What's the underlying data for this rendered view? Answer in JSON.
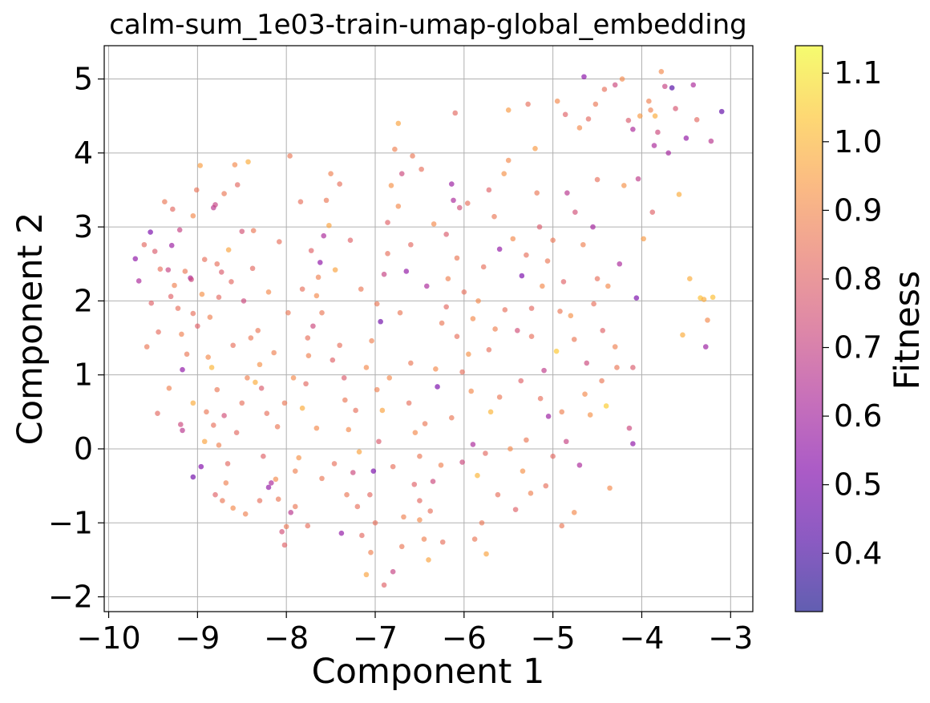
{
  "chart_data": {
    "type": "scatter",
    "title": "calm-sum_1e03-train-umap-global_embedding",
    "xlabel": "Component 1",
    "ylabel": "Component 2",
    "xlim": [
      -10.05,
      -2.75
    ],
    "ylim": [
      -2.2,
      5.45
    ],
    "grid": true,
    "x_ticks": [
      -10,
      -9,
      -8,
      -7,
      -6,
      -5,
      -4,
      -3
    ],
    "x_tick_labels": [
      "−10",
      "−9",
      "−8",
      "−7",
      "−6",
      "−5",
      "−4",
      "−3"
    ],
    "y_ticks": [
      -2,
      -1,
      0,
      1,
      2,
      3,
      4,
      5
    ],
    "y_tick_labels": [
      "−2",
      "−1",
      "0",
      "1",
      "2",
      "3",
      "4",
      "5"
    ],
    "colorbar": {
      "label": "Fitness",
      "colormap": "plasma",
      "alpha": 0.65,
      "vmin": 0.315,
      "vmax": 1.14,
      "ticks": [
        0.4,
        0.5,
        0.6,
        0.7,
        0.8,
        0.9,
        1.0,
        1.1
      ],
      "tick_labels": [
        "0.4",
        "0.5",
        "0.6",
        "0.7",
        "0.8",
        "0.9",
        "1.0",
        "1.1"
      ]
    },
    "points": [
      [
        -9.7,
        2.57,
        0.55
      ],
      [
        -9.66,
        2.27,
        0.62
      ],
      [
        -9.6,
        2.76,
        0.82
      ],
      [
        -9.53,
        2.93,
        0.5
      ],
      [
        -9.48,
        2.67,
        0.78
      ],
      [
        -9.57,
        1.38,
        0.86
      ],
      [
        -9.52,
        1.97,
        0.8
      ],
      [
        -9.44,
        1.58,
        0.83
      ],
      [
        -9.42,
        2.43,
        0.84
      ],
      [
        -9.37,
        3.34,
        0.86
      ],
      [
        -9.33,
        2.42,
        0.7
      ],
      [
        -9.29,
        2.75,
        0.58
      ],
      [
        -9.28,
        3.24,
        0.82
      ],
      [
        -9.26,
        2.21,
        0.88
      ],
      [
        -9.2,
        2.96,
        0.7
      ],
      [
        -9.18,
        1.55,
        0.88
      ],
      [
        -9.17,
        1.07,
        0.55
      ],
      [
        -9.14,
        2.4,
        0.86
      ],
      [
        -9.08,
        2.31,
        0.62
      ],
      [
        -9.07,
        2.29,
        0.72
      ],
      [
        -9.05,
        3.15,
        0.9
      ],
      [
        -9.01,
        3.5,
        0.85
      ],
      [
        -9.05,
        1.83,
        0.84
      ],
      [
        -9.0,
        1.66,
        0.8
      ],
      [
        -8.95,
        2.09,
        0.92
      ],
      [
        -8.97,
        3.83,
        0.95
      ],
      [
        -9.32,
        0.82,
        0.88
      ],
      [
        -9.45,
        0.48,
        0.82
      ],
      [
        -9.19,
        0.33,
        0.72
      ],
      [
        -9.17,
        0.25,
        0.66
      ],
      [
        -9.05,
        0.62,
        0.98
      ],
      [
        -9.05,
        -0.38,
        0.48
      ],
      [
        -8.96,
        -0.24,
        0.52
      ],
      [
        -8.92,
        0.1,
        0.96
      ],
      [
        -8.9,
        0.5,
        0.86
      ],
      [
        -8.88,
        1.24,
        0.9
      ],
      [
        -8.84,
        1.1,
        1.0
      ],
      [
        -8.82,
        0.32,
        0.84
      ],
      [
        -8.8,
        -0.62,
        0.8
      ],
      [
        -8.76,
        0.05,
        0.88
      ],
      [
        -8.72,
        -0.7,
        0.86
      ],
      [
        -8.7,
        0.45,
        0.74
      ],
      [
        -8.66,
        -0.2,
        0.82
      ],
      [
        -8.6,
        -0.8,
        0.9
      ],
      [
        -8.82,
        3.26,
        0.66
      ],
      [
        -8.8,
        3.3,
        0.7
      ],
      [
        -8.78,
        2.5,
        0.84
      ],
      [
        -8.76,
        2.05,
        0.82
      ],
      [
        -8.73,
        2.39,
        0.78
      ],
      [
        -8.7,
        3.45,
        0.86
      ],
      [
        -8.65,
        2.69,
        0.96
      ],
      [
        -8.62,
        2.26,
        0.82
      ],
      [
        -8.58,
        3.84,
        0.9
      ],
      [
        -8.55,
        3.57,
        0.82
      ],
      [
        -8.5,
        2.94,
        0.75
      ],
      [
        -8.48,
        2.0,
        0.72
      ],
      [
        -8.43,
        3.88,
        0.98
      ],
      [
        -8.4,
        1.5,
        0.86
      ],
      [
        -8.37,
        2.95,
        0.86
      ],
      [
        -8.35,
        0.9,
        0.98
      ],
      [
        -8.3,
        1.14,
        0.92
      ],
      [
        -8.28,
        0.82,
        0.78
      ],
      [
        -8.22,
        0.48,
        0.84
      ],
      [
        -8.2,
        -0.52,
        0.56
      ],
      [
        -8.17,
        -0.46,
        0.62
      ],
      [
        -8.12,
        -0.41,
        0.9
      ],
      [
        -8.09,
        -0.68,
        0.86
      ],
      [
        -8.05,
        -1.12,
        0.74
      ],
      [
        -8.02,
        -1.3,
        0.8
      ],
      [
        -8.0,
        -1.05,
        0.86
      ],
      [
        -7.95,
        -0.86,
        0.66
      ],
      [
        -7.9,
        -0.3,
        0.88
      ],
      [
        -7.86,
        -0.12,
        0.92
      ],
      [
        -7.82,
        0.55,
        0.98
      ],
      [
        -7.78,
        0.88,
        0.82
      ],
      [
        -7.75,
        1.26,
        0.88
      ],
      [
        -7.7,
        1.66,
        0.72
      ],
      [
        -7.66,
        2.07,
        0.9
      ],
      [
        -7.62,
        2.52,
        0.55
      ],
      [
        -7.58,
        2.88,
        0.62
      ],
      [
        -7.55,
        3.36,
        0.86
      ],
      [
        -7.5,
        3.72,
        0.88
      ],
      [
        -7.45,
        2.42,
        0.96
      ],
      [
        -7.4,
        1.4,
        0.84
      ],
      [
        -7.35,
        0.96,
        0.78
      ],
      [
        -7.3,
        0.26,
        0.9
      ],
      [
        -7.25,
        -0.32,
        0.72
      ],
      [
        -7.2,
        -0.78,
        0.84
      ],
      [
        -7.15,
        -1.17,
        0.82
      ],
      [
        -7.1,
        -1.7,
        0.96
      ],
      [
        -7.05,
        -1.4,
        0.88
      ],
      [
        -7.02,
        -0.3,
        0.5
      ],
      [
        -6.98,
        0.8,
        0.88
      ],
      [
        -6.94,
        1.72,
        0.48
      ],
      [
        -6.9,
        2.36,
        0.7
      ],
      [
        -6.86,
        3.06,
        0.8
      ],
      [
        -6.82,
        3.56,
        0.92
      ],
      [
        -6.78,
        4.05,
        0.88
      ],
      [
        -6.74,
        4.4,
        0.96
      ],
      [
        -6.7,
        3.72,
        0.72
      ],
      [
        -6.65,
        2.4,
        0.56
      ],
      [
        -6.6,
        1.16,
        0.86
      ],
      [
        -6.55,
        0.22,
        0.9
      ],
      [
        -6.5,
        -0.7,
        0.82
      ],
      [
        -6.45,
        -1.22,
        0.88
      ],
      [
        -6.4,
        -1.5,
        0.96
      ],
      [
        -6.35,
        -0.44,
        0.72
      ],
      [
        -6.3,
        0.84,
        0.5
      ],
      [
        -6.25,
        1.7,
        0.86
      ],
      [
        -6.2,
        2.9,
        0.78
      ],
      [
        -6.14,
        3.58,
        0.58
      ],
      [
        -6.1,
        4.54,
        0.82
      ],
      [
        -6.05,
        3.26,
        0.74
      ],
      [
        -6.0,
        2.12,
        0.84
      ],
      [
        -5.95,
        1.28,
        0.92
      ],
      [
        -5.9,
        0.06,
        0.62
      ],
      [
        -5.85,
        -0.36,
        1.0
      ],
      [
        -5.8,
        -1.0,
        0.86
      ],
      [
        -5.75,
        -1.42,
        0.96
      ],
      [
        -5.7,
        0.5,
        1.0
      ],
      [
        -5.65,
        1.62,
        0.88
      ],
      [
        -5.6,
        2.7,
        0.56
      ],
      [
        -5.55,
        3.72,
        0.92
      ],
      [
        -5.5,
        4.58,
        0.94
      ],
      [
        -5.45,
        2.84,
        0.9
      ],
      [
        -5.4,
        1.6,
        0.74
      ],
      [
        -5.35,
        2.34,
        0.5
      ],
      [
        -5.3,
        0.12,
        0.86
      ],
      [
        -5.25,
        -0.6,
        0.88
      ],
      [
        -5.2,
        4.06,
        0.94
      ],
      [
        -5.15,
        3.0,
        0.78
      ],
      [
        -5.1,
        1.06,
        0.68
      ],
      [
        -5.05,
        0.44,
        0.58
      ],
      [
        -5.0,
        -0.1,
        0.82
      ],
      [
        -4.96,
        1.32,
        1.04
      ],
      [
        -4.9,
        -1.04,
        0.86
      ],
      [
        -4.85,
        0.1,
        0.7
      ],
      [
        -4.8,
        1.8,
        0.92
      ],
      [
        -4.75,
        3.2,
        0.74
      ],
      [
        -4.7,
        4.34,
        0.9
      ],
      [
        -4.65,
        5.03,
        0.54
      ],
      [
        -4.6,
        4.46,
        0.82
      ],
      [
        -4.55,
        3.0,
        0.6
      ],
      [
        -4.5,
        2.3,
        0.84
      ],
      [
        -4.45,
        0.92,
        0.86
      ],
      [
        -4.4,
        0.58,
        1.05
      ],
      [
        -4.36,
        -0.53,
        0.9
      ],
      [
        -4.3,
        1.38,
        0.88
      ],
      [
        -4.25,
        2.5,
        0.62
      ],
      [
        -4.2,
        3.56,
        0.92
      ],
      [
        -4.15,
        4.44,
        0.78
      ],
      [
        -4.1,
        0.07,
        0.55
      ],
      [
        -4.06,
        2.04,
        0.5
      ],
      [
        -4.02,
        4.5,
        0.94
      ],
      [
        -3.98,
        2.84,
        0.94
      ],
      [
        -3.92,
        4.7,
        0.88
      ],
      [
        -3.88,
        3.2,
        0.8
      ],
      [
        -3.85,
        4.5,
        0.98
      ],
      [
        -3.82,
        4.28,
        0.72
      ],
      [
        -3.78,
        5.1,
        0.9
      ],
      [
        -3.74,
        4.9,
        0.7
      ],
      [
        -3.7,
        4.0,
        0.6
      ],
      [
        -3.66,
        4.88,
        0.42
      ],
      [
        -3.62,
        4.6,
        0.76
      ],
      [
        -3.58,
        3.44,
        0.98
      ],
      [
        -3.54,
        1.54,
        0.98
      ],
      [
        -3.5,
        4.2,
        0.56
      ],
      [
        -3.46,
        2.3,
        0.98
      ],
      [
        -3.42,
        4.92,
        0.62
      ],
      [
        -3.38,
        4.45,
        0.82
      ],
      [
        -3.34,
        2.04,
        1.02
      ],
      [
        -3.3,
        2.02,
        0.98
      ],
      [
        -3.28,
        1.38,
        0.58
      ],
      [
        -3.26,
        1.74,
        0.9
      ],
      [
        -3.22,
        4.16,
        0.66
      ],
      [
        -3.1,
        4.56,
        0.45
      ],
      [
        -3.2,
        2.05,
        1.02
      ],
      [
        -4.22,
        5.0,
        0.9
      ],
      [
        -4.3,
        4.92,
        0.72
      ],
      [
        -4.52,
        4.66,
        0.86
      ],
      [
        -4.95,
        4.7,
        0.9
      ],
      [
        -4.5,
        3.64,
        0.84
      ],
      [
        -3.9,
        4.58,
        0.88
      ],
      [
        -3.86,
        4.1,
        0.62
      ],
      [
        -4.04,
        3.65,
        0.68
      ],
      [
        -4.1,
        1.1,
        0.78
      ],
      [
        -4.14,
        0.28,
        0.72
      ],
      [
        -4.58,
        0.46,
        0.92
      ],
      [
        -4.7,
        -0.22,
        0.62
      ],
      [
        -4.76,
        -0.86,
        0.9
      ],
      [
        -4.62,
        1.16,
        0.72
      ],
      [
        -4.44,
        1.6,
        0.8
      ],
      [
        -4.38,
        2.2,
        0.9
      ],
      [
        -4.66,
        2.76,
        0.88
      ],
      [
        -4.84,
        3.46,
        0.66
      ],
      [
        -5.06,
        2.54,
        0.86
      ],
      [
        -5.24,
        1.9,
        0.82
      ],
      [
        -5.14,
        0.68,
        0.84
      ],
      [
        -5.34,
        -0.3,
        0.92
      ],
      [
        -5.42,
        -0.82,
        0.8
      ],
      [
        -5.62,
        -0.62,
        0.84
      ],
      [
        -5.76,
        -0.06,
        0.82
      ],
      [
        -5.92,
        0.78,
        0.9
      ],
      [
        -6.08,
        1.52,
        0.84
      ],
      [
        -6.18,
        2.3,
        0.88
      ],
      [
        -6.34,
        3.04,
        0.9
      ],
      [
        -6.48,
        3.78,
        0.84
      ],
      [
        -6.6,
        2.76,
        0.82
      ],
      [
        -6.72,
        1.84,
        0.86
      ],
      [
        -6.84,
        0.96,
        0.9
      ],
      [
        -6.96,
        0.1,
        0.78
      ],
      [
        -7.06,
        -0.62,
        0.82
      ],
      [
        -7.18,
        -0.04,
        0.96
      ],
      [
        -7.34,
        0.66,
        0.86
      ],
      [
        -7.48,
        1.2,
        0.8
      ],
      [
        -7.6,
        1.84,
        0.86
      ],
      [
        -7.72,
        2.68,
        0.8
      ],
      [
        -7.84,
        3.34,
        0.84
      ],
      [
        -7.96,
        3.96,
        0.86
      ],
      [
        -8.08,
        2.8,
        0.84
      ],
      [
        -8.2,
        2.12,
        0.9
      ],
      [
        -8.32,
        1.6,
        0.86
      ],
      [
        -8.44,
        0.96,
        0.88
      ],
      [
        -8.56,
        0.22,
        0.82
      ],
      [
        -8.68,
        -0.46,
        0.88
      ],
      [
        -8.46,
        -0.88,
        0.88
      ],
      [
        -8.26,
        -0.1,
        0.8
      ],
      [
        -8.1,
        0.3,
        0.86
      ],
      [
        -7.92,
        0.96,
        0.9
      ],
      [
        -7.76,
        1.5,
        0.84
      ],
      [
        -7.64,
        2.32,
        0.88
      ],
      [
        -7.52,
        3.02,
        0.96
      ],
      [
        -7.4,
        3.58,
        0.84
      ],
      [
        -7.28,
        2.82,
        0.8
      ],
      [
        -7.16,
        2.16,
        0.86
      ],
      [
        -7.04,
        1.46,
        0.88
      ],
      [
        -6.92,
        0.52,
        0.96
      ],
      [
        -6.8,
        -0.24,
        0.84
      ],
      [
        -6.68,
        -0.92,
        0.88
      ],
      [
        -6.56,
        -0.48,
        0.8
      ],
      [
        -6.44,
        0.34,
        0.86
      ],
      [
        -6.32,
        1.08,
        0.9
      ],
      [
        -6.2,
        1.92,
        0.82
      ],
      [
        -6.08,
        2.58,
        0.86
      ],
      [
        -5.96,
        3.32,
        0.84
      ],
      [
        -5.84,
        2.0,
        0.9
      ],
      [
        -5.72,
        1.34,
        0.84
      ],
      [
        -5.6,
        0.7,
        0.86
      ],
      [
        -5.48,
        0.0,
        0.9
      ],
      [
        -5.36,
        0.92,
        0.8
      ],
      [
        -5.24,
        1.52,
        0.84
      ],
      [
        -5.12,
        2.2,
        0.9
      ],
      [
        -5.0,
        2.82,
        0.86
      ],
      [
        -4.88,
        2.26,
        0.8
      ],
      [
        -4.76,
        1.48,
        0.86
      ],
      [
        -4.64,
        0.74,
        0.9
      ],
      [
        -8.86,
        1.78,
        0.88
      ],
      [
        -8.92,
        2.56,
        0.84
      ],
      [
        -9.12,
        1.28,
        0.86
      ],
      [
        -9.22,
        1.9,
        0.84
      ],
      [
        -9.3,
        2.06,
        0.8
      ],
      [
        -8.6,
        1.4,
        0.84
      ],
      [
        -8.38,
        2.44,
        0.82
      ],
      [
        -8.14,
        1.3,
        0.88
      ],
      [
        -7.98,
        1.84,
        0.86
      ],
      [
        -7.82,
        2.16,
        0.84
      ],
      [
        -7.66,
        0.28,
        0.9
      ],
      [
        -7.46,
        -0.2,
        0.84
      ],
      [
        -7.32,
        -0.62,
        0.86
      ],
      [
        -7.22,
        0.52,
        0.84
      ],
      [
        -7.1,
        1.1,
        0.9
      ],
      [
        -6.98,
        1.96,
        0.86
      ],
      [
        -6.86,
        2.64,
        0.84
      ],
      [
        -6.74,
        3.28,
        0.9
      ],
      [
        -6.62,
        0.62,
        0.84
      ],
      [
        -6.5,
        -0.1,
        0.86
      ],
      [
        -6.38,
        -0.84,
        0.84
      ],
      [
        -6.26,
        -0.22,
        0.88
      ],
      [
        -6.14,
        0.42,
        0.86
      ],
      [
        -6.02,
        1.04,
        0.84
      ],
      [
        -5.9,
        1.76,
        0.9
      ],
      [
        -5.78,
        2.46,
        0.84
      ],
      [
        -5.66,
        3.14,
        0.86
      ],
      [
        -5.54,
        1.88,
        0.84
      ],
      [
        -5.18,
        3.46,
        0.86
      ],
      [
        -5.3,
        2.62,
        0.84
      ],
      [
        -4.92,
        1.86,
        0.86
      ],
      [
        -4.54,
        1.96,
        0.84
      ],
      [
        -4.28,
        1.1,
        0.86
      ],
      [
        -4.9,
        0.5,
        0.88
      ],
      [
        -5.08,
        -0.5,
        0.84
      ],
      [
        -8.02,
        0.62,
        0.86
      ],
      [
        -8.5,
        0.62,
        0.84
      ],
      [
        -8.78,
        0.8,
        0.86
      ],
      [
        -8.3,
        -0.7,
        0.84
      ],
      [
        -7.6,
        -0.4,
        0.86
      ],
      [
        -7.0,
        -1.0,
        0.84
      ],
      [
        -6.7,
        -1.32,
        0.86
      ],
      [
        -6.24,
        -1.26,
        0.84
      ],
      [
        -5.88,
        -1.22,
        0.86
      ],
      [
        -7.38,
        -1.14,
        0.56
      ],
      [
        -7.76,
        -1.04,
        0.84
      ],
      [
        -7.9,
        -0.78,
        0.86
      ],
      [
        -6.9,
        -1.84,
        0.8
      ],
      [
        -6.8,
        -1.66,
        0.7
      ],
      [
        -6.5,
        -0.96,
        0.9
      ],
      [
        -6.02,
        -0.18,
        0.72
      ],
      [
        -6.42,
        2.2,
        0.62
      ],
      [
        -6.12,
        3.36,
        0.62
      ],
      [
        -6.58,
        3.96,
        0.86
      ],
      [
        -5.72,
        3.5,
        0.8
      ],
      [
        -5.5,
        3.9,
        0.9
      ],
      [
        -5.28,
        4.66,
        0.84
      ],
      [
        -4.86,
        4.52,
        0.8
      ],
      [
        -4.42,
        4.86,
        0.84
      ],
      [
        -4.1,
        4.32,
        0.62
      ]
    ]
  }
}
